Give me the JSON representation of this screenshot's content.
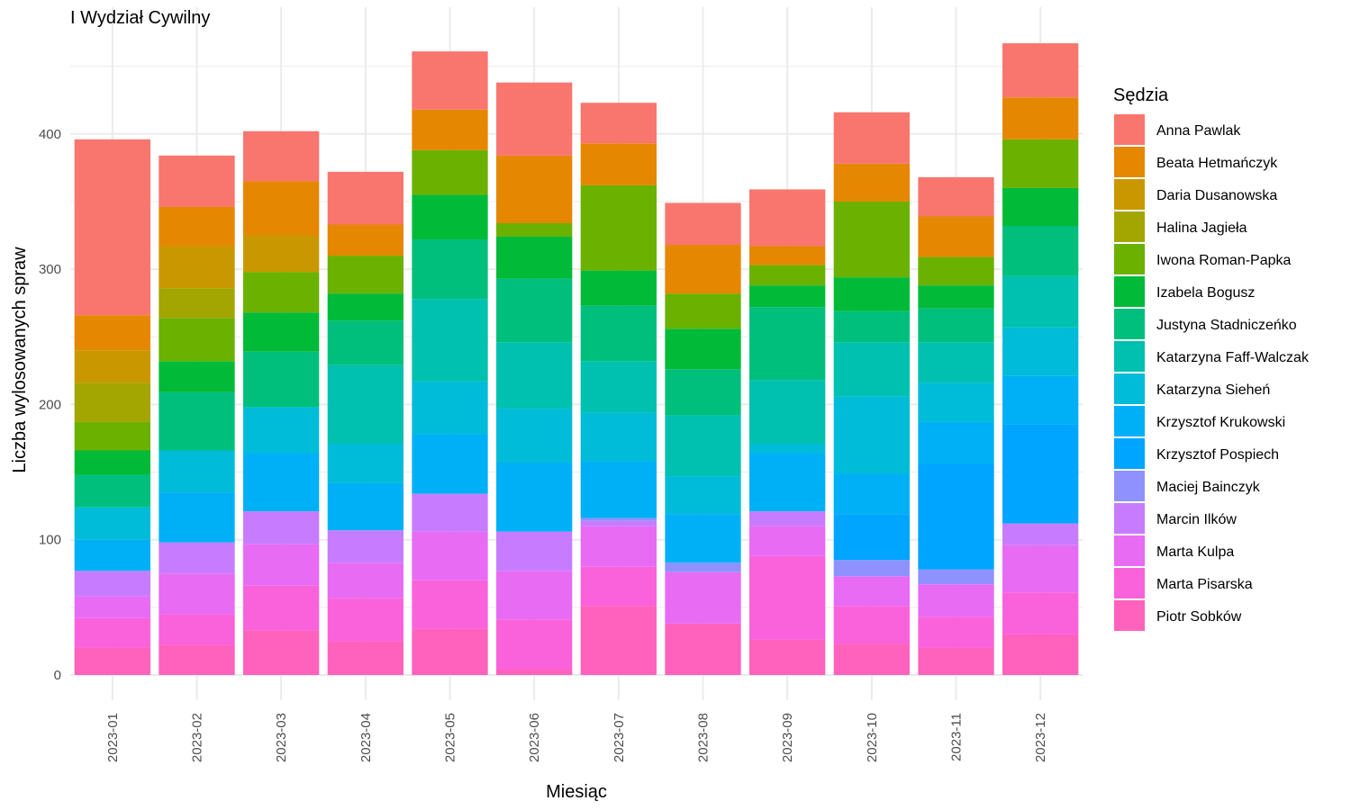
{
  "chart_data": {
    "type": "bar",
    "stacked": true,
    "title": "I Wydział Cywilny",
    "xlabel": "Miesiąc",
    "ylabel": "Liczba wylosowanych spraw",
    "ylim": [
      0,
      470
    ],
    "yticks": [
      0,
      100,
      200,
      300,
      400
    ],
    "grid": true,
    "legend_title": "Sędzia",
    "legend_position": "right",
    "categories": [
      "2023-01",
      "2023-02",
      "2023-03",
      "2023-04",
      "2023-05",
      "2023-06",
      "2023-07",
      "2023-08",
      "2023-09",
      "2023-10",
      "2023-11",
      "2023-12"
    ],
    "series": [
      {
        "name": "Anna Pawlak",
        "color": "#F8766D",
        "values": [
          130,
          38,
          37,
          39,
          43,
          54,
          30,
          31,
          42,
          38,
          29,
          40
        ]
      },
      {
        "name": "Beata Hetmańczyk",
        "color": "#E58700",
        "values": [
          26,
          29,
          40,
          23,
          30,
          50,
          31,
          36,
          14,
          28,
          30,
          31
        ]
      },
      {
        "name": "Daria Dusanowska",
        "color": "#C99800",
        "values": [
          24,
          31,
          27,
          0,
          0,
          0,
          0,
          0,
          0,
          0,
          0,
          0
        ]
      },
      {
        "name": "Halina Jagieła",
        "color": "#A3A500",
        "values": [
          29,
          22,
          0,
          0,
          0,
          0,
          0,
          0,
          0,
          0,
          0,
          0
        ]
      },
      {
        "name": "Iwona Roman-Papka",
        "color": "#6BB100",
        "values": [
          21,
          32,
          30,
          28,
          33,
          10,
          63,
          26,
          15,
          56,
          21,
          36
        ]
      },
      {
        "name": "Izabela Bogusz",
        "color": "#00BA38",
        "values": [
          18,
          23,
          29,
          20,
          33,
          31,
          26,
          30,
          16,
          25,
          17,
          28
        ]
      },
      {
        "name": "Justyna Stadniczeńko",
        "color": "#00BF7D",
        "values": [
          24,
          43,
          41,
          33,
          44,
          47,
          41,
          34,
          54,
          23,
          25,
          37
        ]
      },
      {
        "name": "Katarzyna Faff-Walczak",
        "color": "#00C0AF",
        "values": [
          0,
          0,
          0,
          58,
          61,
          49,
          38,
          45,
          47,
          40,
          30,
          38
        ]
      },
      {
        "name": "Katarzyna Sieheń",
        "color": "#00BCD8",
        "values": [
          24,
          31,
          34,
          29,
          39,
          40,
          36,
          28,
          7,
          57,
          29,
          36
        ]
      },
      {
        "name": "Krzysztof Krukowski",
        "color": "#00B0F6",
        "values": [
          23,
          37,
          43,
          35,
          44,
          51,
          42,
          36,
          43,
          30,
          31,
          36
        ]
      },
      {
        "name": "Krzysztof Pospiech",
        "color": "#00A5FF",
        "values": [
          0,
          0,
          0,
          0,
          0,
          0,
          0,
          0,
          0,
          34,
          78,
          73
        ]
      },
      {
        "name": "Maciej Bainczyk",
        "color": "#8F91FF",
        "values": [
          0,
          0,
          0,
          0,
          0,
          0,
          2,
          7,
          0,
          12,
          11,
          0
        ]
      },
      {
        "name": "Marcin Ilków",
        "color": "#C77CFF",
        "values": [
          19,
          23,
          24,
          24,
          28,
          29,
          4,
          0,
          11,
          0,
          0,
          16
        ]
      },
      {
        "name": "Marta Kulpa",
        "color": "#E76BF3",
        "values": [
          16,
          30,
          31,
          26,
          36,
          36,
          30,
          38,
          22,
          22,
          24,
          35
        ]
      },
      {
        "name": "Marta Pisarska",
        "color": "#FA62DB",
        "values": [
          22,
          23,
          33,
          32,
          36,
          37,
          29,
          0,
          62,
          28,
          23,
          31
        ]
      },
      {
        "name": "Piotr Sobków",
        "color": "#FF62BC",
        "values": [
          20,
          22,
          33,
          25,
          34,
          4,
          51,
          38,
          26,
          23,
          20,
          30
        ]
      }
    ]
  }
}
